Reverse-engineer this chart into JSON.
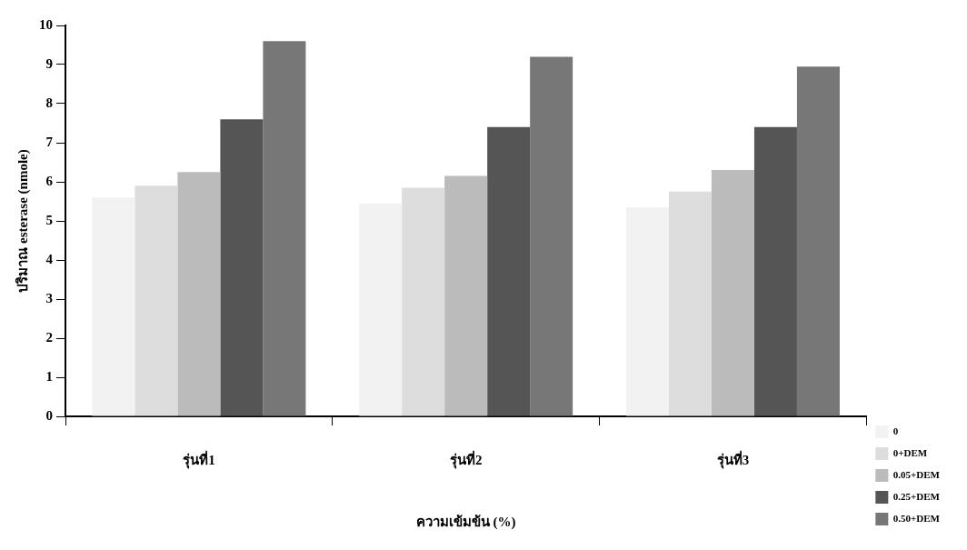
{
  "chart_data": {
    "type": "bar",
    "xlabel": "ความเข้มข้น (%)",
    "ylabel": "ปริมาณ esterase (nmole)",
    "categories": [
      "รุ่นที่1",
      "รุ่นที่2",
      "รุ่นที่3"
    ],
    "series": [
      {
        "name": "0",
        "color": "#f2f2f2",
        "values": [
          5.6,
          5.45,
          5.35
        ]
      },
      {
        "name": "0+DEM",
        "color": "#dddddd",
        "values": [
          5.9,
          5.85,
          5.75
        ]
      },
      {
        "name": "0.05+DEM",
        "color": "#bbbbbb",
        "values": [
          6.25,
          6.15,
          6.3
        ]
      },
      {
        "name": "0.25+DEM",
        "color": "#555555",
        "values": [
          7.6,
          7.4,
          7.4
        ]
      },
      {
        "name": "0.50+DEM",
        "color": "#777777",
        "values": [
          9.6,
          9.2,
          8.95
        ]
      }
    ],
    "ylim": [
      0,
      10
    ],
    "yticks": [
      0,
      1,
      2,
      3,
      4,
      5,
      6,
      7,
      8,
      9,
      10
    ],
    "grid": false,
    "legend": "bottom right"
  }
}
